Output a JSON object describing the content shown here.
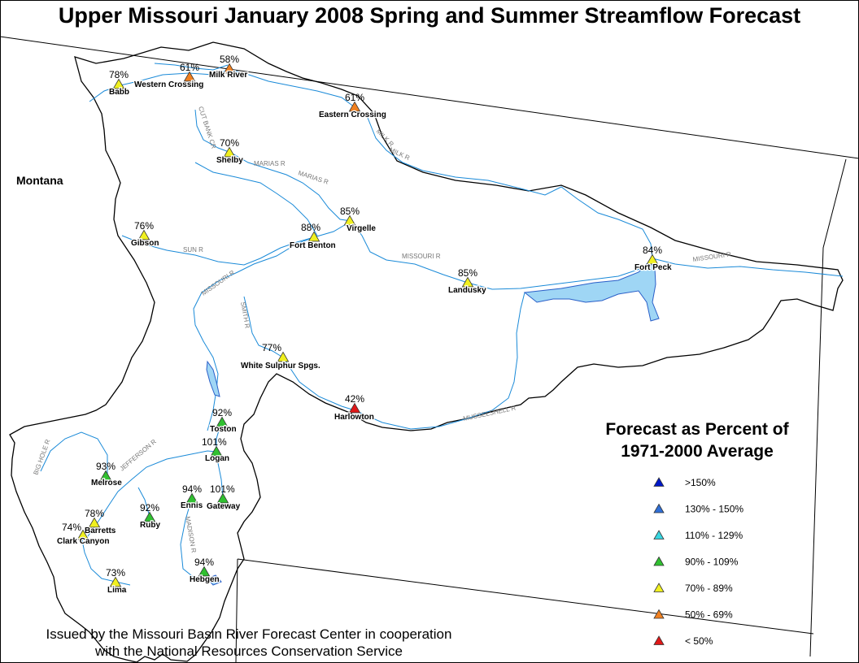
{
  "title": "Upper Missouri January 2008 Spring and Summer Streamflow Forecast",
  "state_label": "Montana",
  "legend": {
    "title_line1": "Forecast as Percent of",
    "title_line2": "1971-2000 Average",
    "entries": [
      {
        "label": ">150%",
        "color": "#0018c8"
      },
      {
        "label": "130% - 150%",
        "color": "#2f6fd6"
      },
      {
        "label": "110% - 129%",
        "color": "#38d6e0"
      },
      {
        "label": "90% - 109%",
        "color": "#30c030"
      },
      {
        "label": "70% - 89%",
        "color": "#f0f020"
      },
      {
        "label": "50% - 69%",
        "color": "#f08020"
      },
      {
        "label": "< 50%",
        "color": "#e01818"
      }
    ]
  },
  "stations": [
    {
      "name": "Babb",
      "pct": "78%",
      "color": "#f0f020"
    },
    {
      "name": "Western Crossing",
      "pct": "61%",
      "color": "#f08020"
    },
    {
      "name": "Milk River",
      "pct": "58%",
      "color": "#f08020"
    },
    {
      "name": "Eastern Crossing",
      "pct": "61%",
      "color": "#f08020"
    },
    {
      "name": "Shelby",
      "pct": "70%",
      "color": "#f0f020"
    },
    {
      "name": "Gibson",
      "pct": "76%",
      "color": "#f0f020"
    },
    {
      "name": "Virgelle",
      "pct": "85%",
      "color": "#f0f020"
    },
    {
      "name": "Fort Benton",
      "pct": "88%",
      "color": "#f0f020"
    },
    {
      "name": "Landusky",
      "pct": "85%",
      "color": "#f0f020"
    },
    {
      "name": "Fort Peck",
      "pct": "84%",
      "color": "#f0f020"
    },
    {
      "name": "White Sulphur Spgs.",
      "pct": "77%",
      "color": "#f0f020"
    },
    {
      "name": "Harlowton",
      "pct": "42%",
      "color": "#e01818"
    },
    {
      "name": "Toston",
      "pct": "92%",
      "color": "#30c030"
    },
    {
      "name": "Logan",
      "pct": "101%",
      "color": "#30c030"
    },
    {
      "name": "Melrose",
      "pct": "93%",
      "color": "#30c030"
    },
    {
      "name": "Ennis",
      "pct": "94%",
      "color": "#30c030"
    },
    {
      "name": "Gateway",
      "pct": "101%",
      "color": "#30c030"
    },
    {
      "name": "Barretts",
      "pct": "78%",
      "color": "#f0f020"
    },
    {
      "name": "Ruby",
      "pct": "92%",
      "color": "#30c030"
    },
    {
      "name": "Clark Canyon",
      "pct": "74%",
      "color": "#f0f020"
    },
    {
      "name": "Lima",
      "pct": "73%",
      "color": "#f0f020"
    },
    {
      "name": "Hebgen",
      "pct": "94%",
      "color": "#30c030"
    }
  ],
  "river_labels": [
    "CUT BANK CR",
    "MARIAS R",
    "MARIAS R",
    "MILK R",
    "MILK R",
    "SUN R",
    "MISSOURI R",
    "MISSOURI R",
    "MISSOURI R",
    "SMITH R",
    "MUSSELSHELL R",
    "JEFFERSON R",
    "BIG HOLE R",
    "MADISON R"
  ],
  "footer": {
    "line1": "Issued by the Missouri Basin River Forecast Center in cooperation",
    "line2": "with the National Resources Conservation Service"
  }
}
